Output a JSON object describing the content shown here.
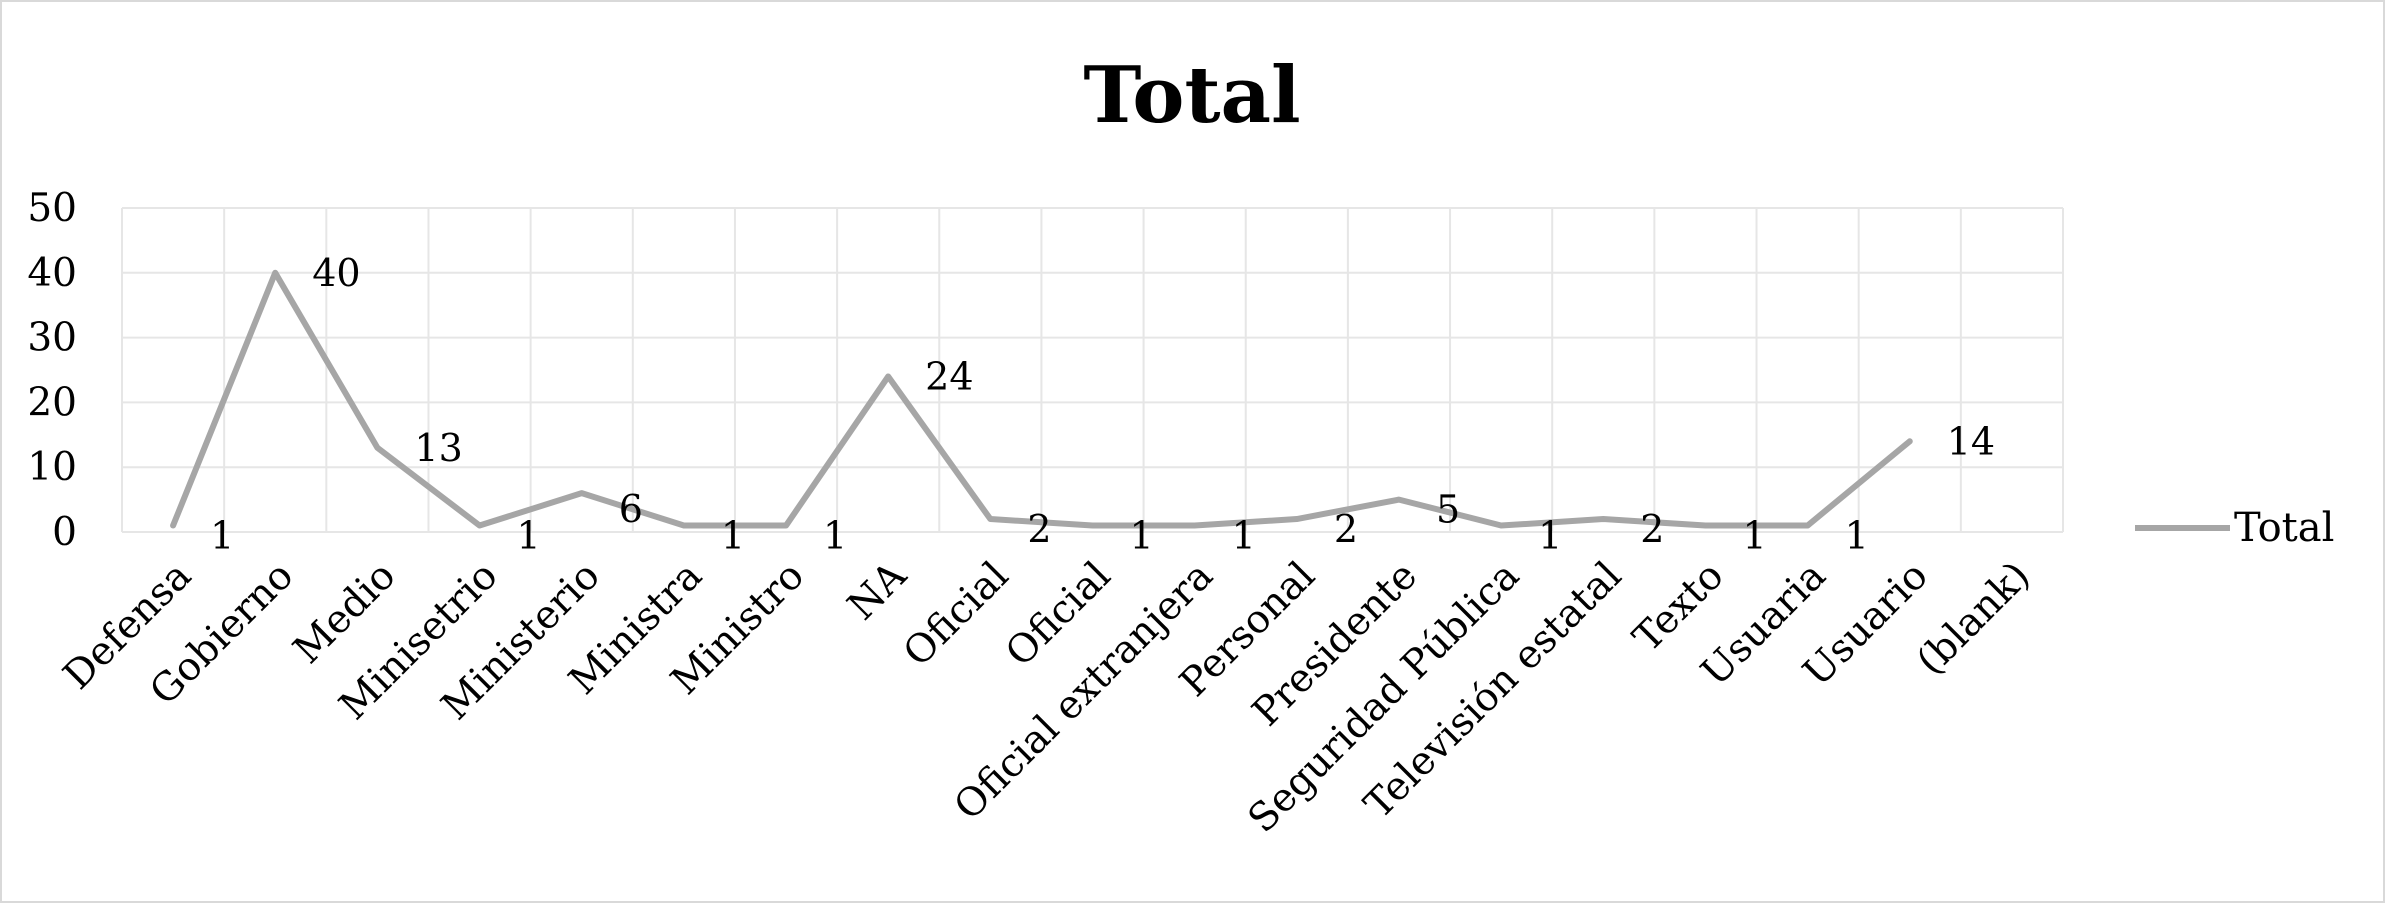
{
  "chart_data": {
    "type": "line",
    "title": "Total",
    "xlabel": "",
    "ylabel": "",
    "ylim": [
      0,
      50
    ],
    "yticks": [
      "0",
      "10",
      "20",
      "30",
      "40",
      "50"
    ],
    "grid": true,
    "legend_position": "right",
    "categories": [
      "Defensa",
      "Gobierno",
      "Medio",
      "Minisetrio",
      "Ministerio",
      "Ministra",
      "Ministro",
      "NA",
      "Oficial",
      "Oficial",
      "Oficial extranjera",
      "Personal",
      "Presidente",
      "Seguridad Pública",
      "Televisión estatal",
      "Texto",
      "Usuaria",
      "Usuario",
      "(blank)"
    ],
    "series": [
      {
        "name": "Total",
        "color": "#a6a6a6",
        "values": [
          1,
          40,
          13,
          1,
          6,
          1,
          1,
          24,
          2,
          1,
          1,
          2,
          5,
          1,
          2,
          1,
          1,
          14,
          null
        ],
        "data_labels": [
          "1",
          "40",
          "13",
          "1",
          "6",
          "1",
          "1",
          "24",
          "2",
          "1",
          "1",
          "2",
          "5",
          "1",
          "2",
          "1",
          "1",
          "14",
          ""
        ]
      }
    ]
  }
}
